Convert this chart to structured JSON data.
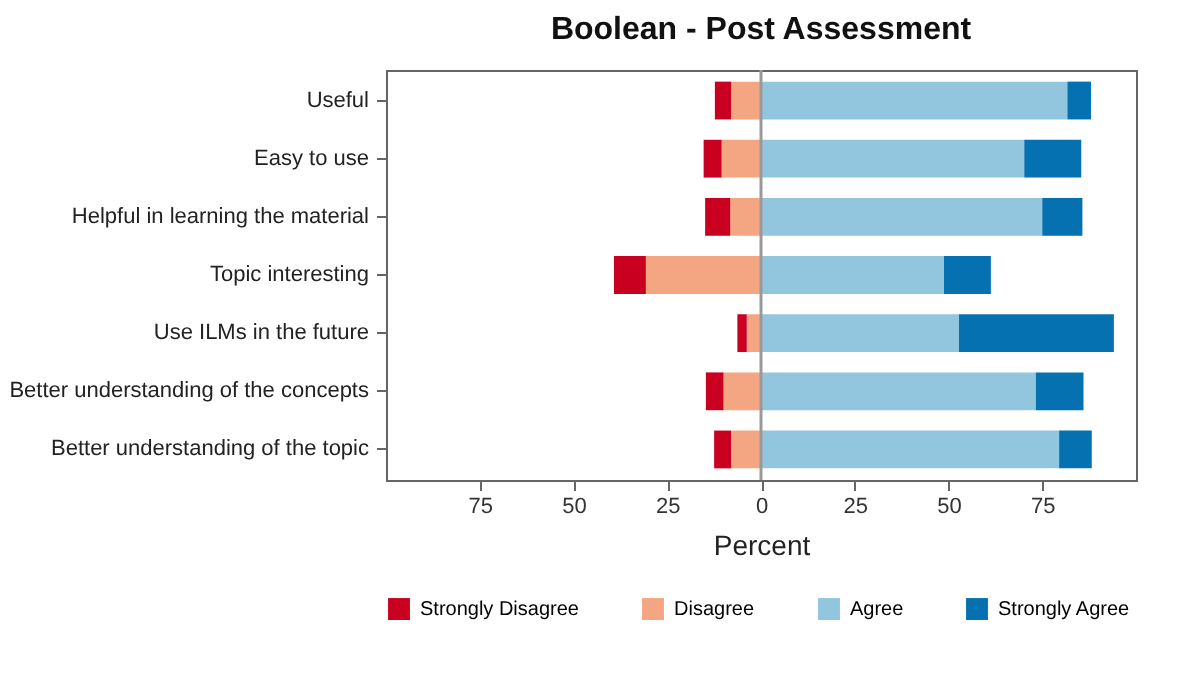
{
  "chart_data": {
    "type": "bar",
    "title": "Boolean - Post Assessment",
    "xlabel": "Percent",
    "orientation": "horizontal",
    "stacked": true,
    "categories": [
      "Useful",
      "Easy to use",
      "Helpful in learning the material",
      "Topic interesting",
      "Use ILMs in the future",
      "Better understanding of the concepts",
      "Better understanding of the topic"
    ],
    "series": [
      {
        "name": "Disagree",
        "color": "#f4a582",
        "values": [
          -8,
          -10.5,
          -8.2,
          -30.7,
          -3.8,
          -10,
          -8
        ]
      },
      {
        "name": "Strongly Disagree",
        "color": "#ca0020",
        "values": [
          -4.3,
          -4.8,
          -6.7,
          -8.5,
          -2.5,
          -4.7,
          -4.5
        ]
      },
      {
        "name": "Agree",
        "color": "#92c5de",
        "values": [
          81.7,
          70.2,
          75,
          48.8,
          52.8,
          73.3,
          79.5
        ]
      },
      {
        "name": "Strongly Agree",
        "color": "#0571b0",
        "values": [
          6.3,
          15.2,
          10.7,
          12.5,
          41.3,
          12.7,
          8.7
        ]
      }
    ],
    "xlim": [
      -100,
      100
    ],
    "xticks": [
      {
        "value": -75,
        "label": "75"
      },
      {
        "value": -50,
        "label": "50"
      },
      {
        "value": -25,
        "label": "25"
      },
      0,
      25,
      50,
      75
    ],
    "ref_lines": [
      {
        "axis": "x",
        "value": 0,
        "color": "#999999"
      }
    ],
    "grid": false,
    "legend": "bottom"
  }
}
